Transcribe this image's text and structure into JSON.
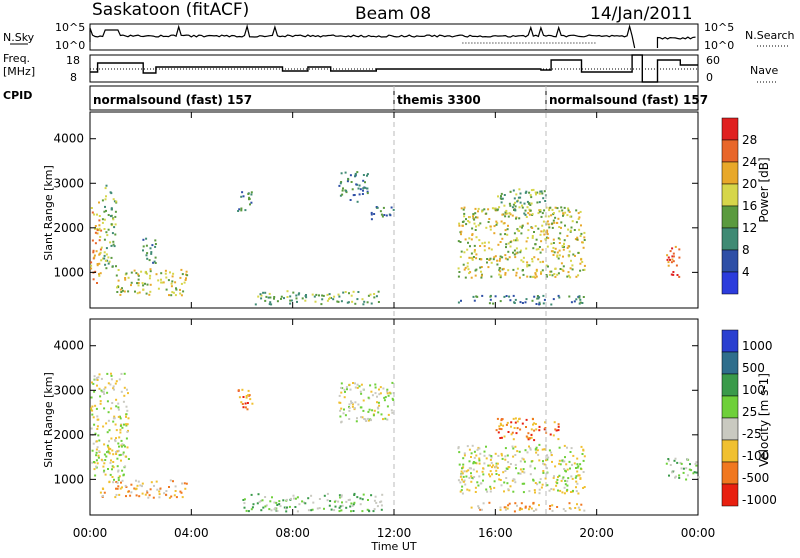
{
  "chart_data": {
    "type": "heatmap",
    "title": "Saskatoon (fitACF)",
    "beam": "Beam 08",
    "date": "14/Jan/2011",
    "xlabel": "Time UT",
    "x_ticks": [
      "00:00",
      "04:00",
      "08:00",
      "12:00",
      "16:00",
      "20:00",
      "00:00"
    ],
    "xlim_hours": [
      0,
      24
    ],
    "ylabel": "Slant Range [km]",
    "y_ticks": [
      1000,
      2000,
      3000,
      4000
    ],
    "ylim_km": [
      200,
      4600
    ],
    "top_panel": {
      "left_label": "N.Sky",
      "left_ticks": [
        "10^5",
        "10^0"
      ],
      "right_label": "N.Search",
      "right_ticks": [
        "10^5",
        "10^0"
      ]
    },
    "freq_panel": {
      "left_label_1": "Freq.",
      "left_label_2": "[MHz]",
      "left_ticks": [
        "18",
        "8"
      ],
      "right_label": "Nave",
      "right_ticks": [
        "60",
        "0"
      ]
    },
    "cpid": {
      "label": "CPID",
      "segments": [
        {
          "name": "normalsound (fast) 157",
          "start_hour": 0,
          "end_hour": 12
        },
        {
          "name": "themis 3300",
          "start_hour": 12,
          "end_hour": 18
        },
        {
          "name": "normalsound (fast) 157",
          "start_hour": 18,
          "end_hour": 24
        }
      ]
    },
    "power_panel": {
      "colorbar_label": "Power [dB]",
      "colorbar_ticks": [
        4,
        8,
        12,
        16,
        20,
        24,
        28
      ],
      "colors": [
        "#2c3cdc",
        "#2e4fa6",
        "#3f8a74",
        "#5a9a3e",
        "#d6d64a",
        "#e8a82a",
        "#e8662a",
        "#e02020"
      ]
    },
    "velocity_panel": {
      "colorbar_label": "Velocity [m s-1]",
      "colorbar_ticks": [
        "1000",
        "500",
        "100",
        "25",
        "-25",
        "-100",
        "-500",
        "-1000"
      ],
      "colors": [
        "#2a3fd0",
        "#2f6e8c",
        "#3a9a4a",
        "#6fd03a",
        "#c9c9c0",
        "#f0c030",
        "#f07820",
        "#e82010"
      ]
    },
    "scatter_regions_power": [
      {
        "t0": 0.0,
        "t1": 0.4,
        "r0": 600,
        "r1": 2600,
        "level": 5
      },
      {
        "t0": 0.4,
        "t1": 1.0,
        "r0": 1100,
        "r1": 3000,
        "level": 3
      },
      {
        "t0": 1.0,
        "t1": 3.8,
        "r0": 500,
        "r1": 1100,
        "level": 4
      },
      {
        "t0": 2.0,
        "t1": 2.6,
        "r0": 1200,
        "r1": 1800,
        "level": 2
      },
      {
        "t0": 5.8,
        "t1": 6.4,
        "r0": 2400,
        "r1": 2900,
        "level": 2
      },
      {
        "t0": 6.5,
        "t1": 11.5,
        "r0": 300,
        "r1": 600,
        "level": 3
      },
      {
        "t0": 9.8,
        "t1": 11.0,
        "r0": 2600,
        "r1": 3300,
        "level": 2
      },
      {
        "t0": 11.0,
        "t1": 12.0,
        "r0": 2200,
        "r1": 2500,
        "level": 2
      },
      {
        "t0": 14.5,
        "t1": 19.5,
        "r0": 900,
        "r1": 2500,
        "level": 4
      },
      {
        "t0": 16.0,
        "t1": 18.0,
        "r0": 2300,
        "r1": 2900,
        "level": 3
      },
      {
        "t0": 14.5,
        "t1": 19.5,
        "r0": 300,
        "r1": 500,
        "level": 2
      },
      {
        "t0": 22.7,
        "t1": 23.3,
        "r0": 900,
        "r1": 1600,
        "level": 6
      }
    ],
    "scatter_regions_velocity": [
      {
        "t0": 0.0,
        "t1": 1.5,
        "r0": 1000,
        "r1": 3400,
        "level": 4
      },
      {
        "t0": 0.3,
        "t1": 3.8,
        "r0": 600,
        "r1": 1000,
        "level": 5
      },
      {
        "t0": 5.8,
        "t1": 6.4,
        "r0": 2500,
        "r1": 3100,
        "level": 6
      },
      {
        "t0": 6.0,
        "t1": 11.5,
        "r0": 300,
        "r1": 700,
        "level": 3
      },
      {
        "t0": 9.8,
        "t1": 12.0,
        "r0": 2300,
        "r1": 3200,
        "level": 4
      },
      {
        "t0": 14.5,
        "t1": 19.5,
        "r0": 700,
        "r1": 1800,
        "level": 4
      },
      {
        "t0": 16.0,
        "t1": 18.5,
        "r0": 1900,
        "r1": 2400,
        "level": 6
      },
      {
        "t0": 15.0,
        "t1": 19.5,
        "r0": 300,
        "r1": 500,
        "level": 5
      },
      {
        "t0": 22.7,
        "t1": 24.0,
        "r0": 1000,
        "r1": 1500,
        "level": 3
      }
    ]
  }
}
